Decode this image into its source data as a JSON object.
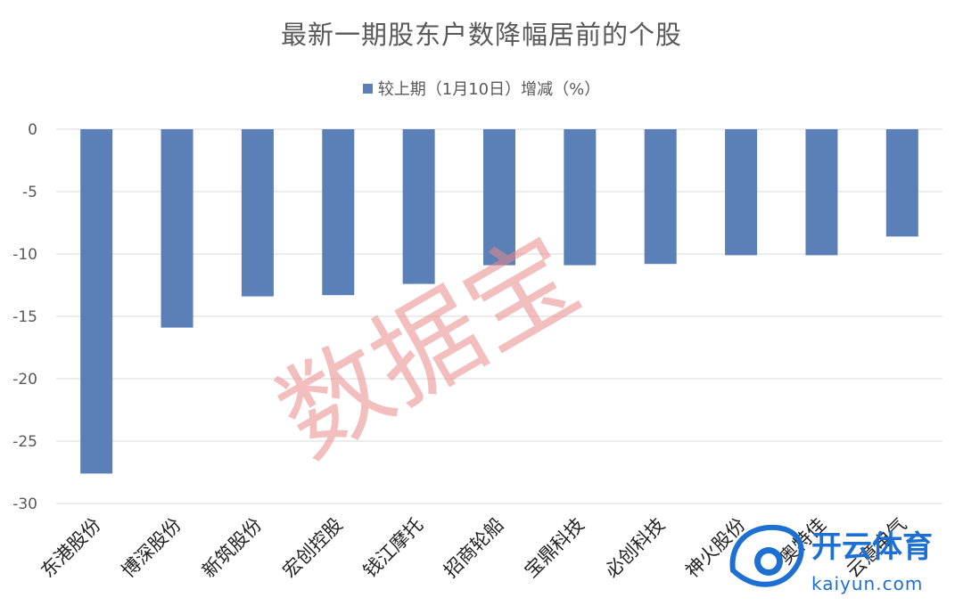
{
  "chart_data": {
    "type": "bar",
    "title": "最新一期股东户数降幅居前的个股",
    "categories": [
      "东港股份",
      "博深股份",
      "新筑股份",
      "宏创控股",
      "钱江摩托",
      "招商轮船",
      "宝鼎科技",
      "必创科技",
      "神火股份",
      "奥特佳",
      "云意电气"
    ],
    "series": [
      {
        "name": "较上期（1月10日）增减（%）",
        "values": [
          -27.6,
          -15.9,
          -13.4,
          -13.3,
          -12.4,
          -10.9,
          -10.9,
          -10.8,
          -10.1,
          -10.1,
          -8.6
        ]
      }
    ],
    "ylim": [
      -30,
      0
    ],
    "yticks": [
      0,
      -5,
      -10,
      -15,
      -20,
      -25,
      -30
    ],
    "grid": true,
    "legend_position": "top-center",
    "bar_color": "#5b7fb7"
  },
  "watermark": {
    "text": "数据宝",
    "color": "#e88a8a"
  },
  "brand": {
    "name": "开云体育",
    "url": "kaiyun.com",
    "color": "#1d6fd1"
  }
}
